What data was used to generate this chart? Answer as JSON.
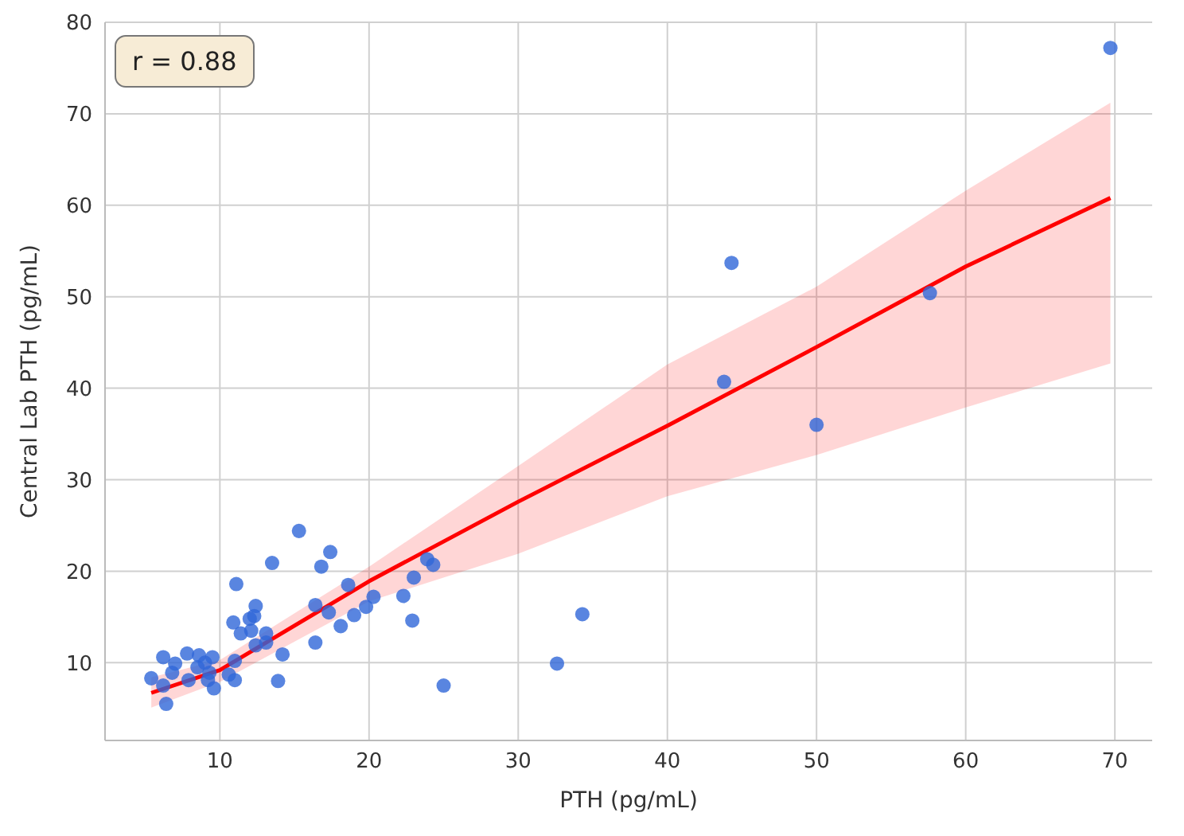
{
  "chart_data": {
    "type": "scatter",
    "xlabel": "PTH (pg/mL)",
    "ylabel": "Central Lab PTH (pg/mL)",
    "annotations": [
      "r = 0.88"
    ],
    "xlim": [
      2.3,
      72.5
    ],
    "ylim": [
      1.5,
      80
    ],
    "xticks": [
      10,
      20,
      30,
      40,
      50,
      60,
      70
    ],
    "yticks": [
      10,
      20,
      30,
      40,
      50,
      60,
      70,
      80
    ],
    "grid": true,
    "series": [
      {
        "color": "#2f67d8",
        "marker": "circle",
        "x": [
          5.4,
          6.2,
          6.2,
          6.4,
          6.8,
          7.0,
          7.8,
          7.9,
          8.6,
          8.5,
          9.0,
          9.2,
          9.5,
          9.6,
          9.3,
          10.6,
          11.0,
          11.0,
          10.9,
          11.1,
          11.4,
          12.0,
          12.3,
          12.4,
          12.1,
          12.4,
          13.1,
          13.1,
          13.5,
          14.2,
          13.9,
          15.3,
          16.4,
          16.4,
          16.8,
          17.3,
          17.4,
          18.1,
          18.6,
          19.0,
          19.8,
          20.3,
          22.3,
          22.9,
          23.0,
          23.9,
          24.3,
          25.0,
          32.6,
          34.3,
          44.3,
          43.8,
          50.0,
          57.6,
          69.7
        ],
        "values": [
          8.3,
          10.6,
          7.5,
          5.5,
          8.9,
          9.9,
          11.0,
          8.1,
          10.8,
          9.5,
          10.0,
          8.1,
          10.6,
          7.2,
          8.9,
          8.7,
          10.2,
          8.1,
          14.4,
          18.6,
          13.2,
          14.8,
          15.1,
          16.2,
          13.5,
          11.9,
          13.2,
          12.2,
          20.9,
          10.9,
          8.0,
          24.4,
          16.3,
          12.2,
          20.5,
          15.5,
          22.1,
          14.0,
          18.5,
          15.2,
          16.1,
          17.2,
          17.3,
          14.6,
          19.3,
          21.3,
          20.7,
          7.5,
          9.9,
          15.3,
          53.7,
          40.7,
          36.0,
          50.4,
          77.2
        ]
      },
      {
        "type": "line",
        "color": "#ff0000",
        "marker": "none",
        "x": [
          5.4,
          10,
          20,
          30,
          40,
          50,
          60,
          69.7
        ],
        "values": [
          6.7,
          9.2,
          18.9,
          27.6,
          35.9,
          44.5,
          53.3,
          60.8
        ],
        "lower": [
          5.1,
          7.9,
          16.7,
          21.9,
          28.2,
          32.7,
          37.9,
          42.7
        ],
        "upper": [
          8.4,
          10.3,
          20.5,
          31.5,
          42.6,
          51.1,
          61.6,
          71.2
        ]
      }
    ]
  }
}
